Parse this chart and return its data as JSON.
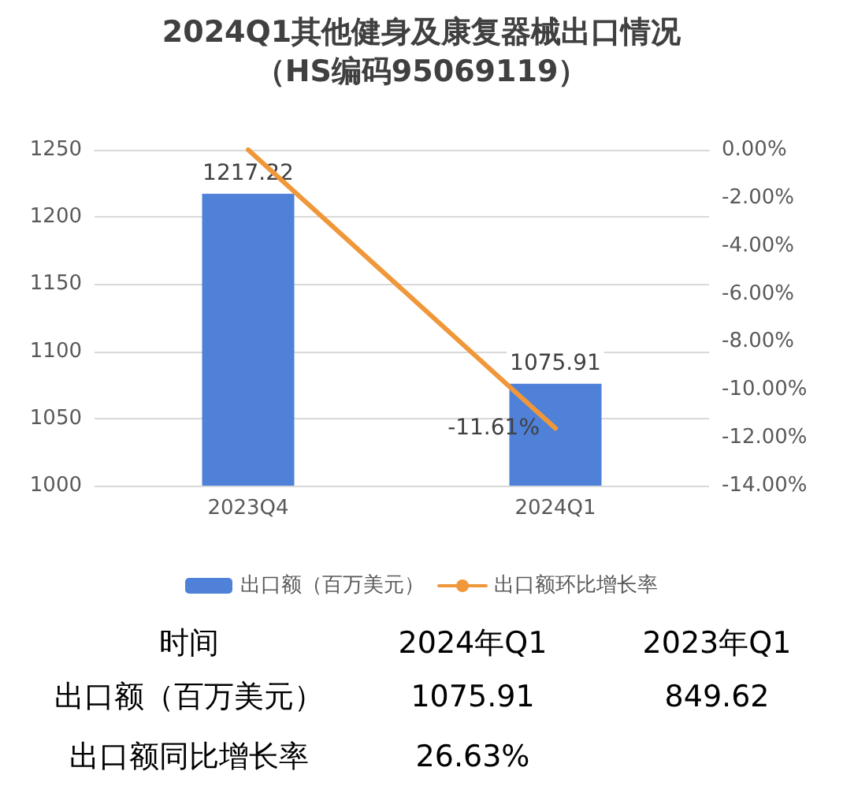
{
  "chart_data": {
    "type": "bar",
    "title": "2024Q1其他健身及康复器械出口情况",
    "subtitle": "（HS编码95069119）",
    "categories": [
      "2023Q4",
      "2024Q1"
    ],
    "series": [
      {
        "name": "出口额（百万美元）",
        "color": "#4f81d9",
        "values": [
          1217.22,
          1075.91
        ],
        "data_labels": true
      },
      {
        "name": "出口额环比增长率",
        "type": "line",
        "axis": "y2",
        "color": "#f0973a",
        "values": [
          0,
          -11.61
        ],
        "value_labels": [
          null,
          "-11.61%"
        ],
        "marker": "none"
      }
    ],
    "ylim": [
      1000,
      1250
    ],
    "yticks": [
      1000,
      1050,
      1100,
      1150,
      1200,
      1250
    ],
    "y2lim": [
      -14,
      0
    ],
    "y2ticks": [
      {
        "value": -14,
        "label": "-14.00%"
      },
      {
        "value": -12,
        "label": "-12.00%"
      },
      {
        "value": -10,
        "label": "-10.00%"
      },
      {
        "value": -8,
        "label": "-8.00%"
      },
      {
        "value": -6,
        "label": "-6.00%"
      },
      {
        "value": -4,
        "label": "-4.00%"
      },
      {
        "value": -2,
        "label": "-2.00%"
      },
      {
        "value": 0,
        "label": "0.00%"
      }
    ],
    "grid": "y",
    "legend": "bottom",
    "annotations": [
      "时间",
      "2024年Q1",
      "2023年Q1",
      "出口额（百万美元）",
      "1075.91",
      "849.62",
      "出口额同比增长率",
      "26.63%"
    ]
  }
}
